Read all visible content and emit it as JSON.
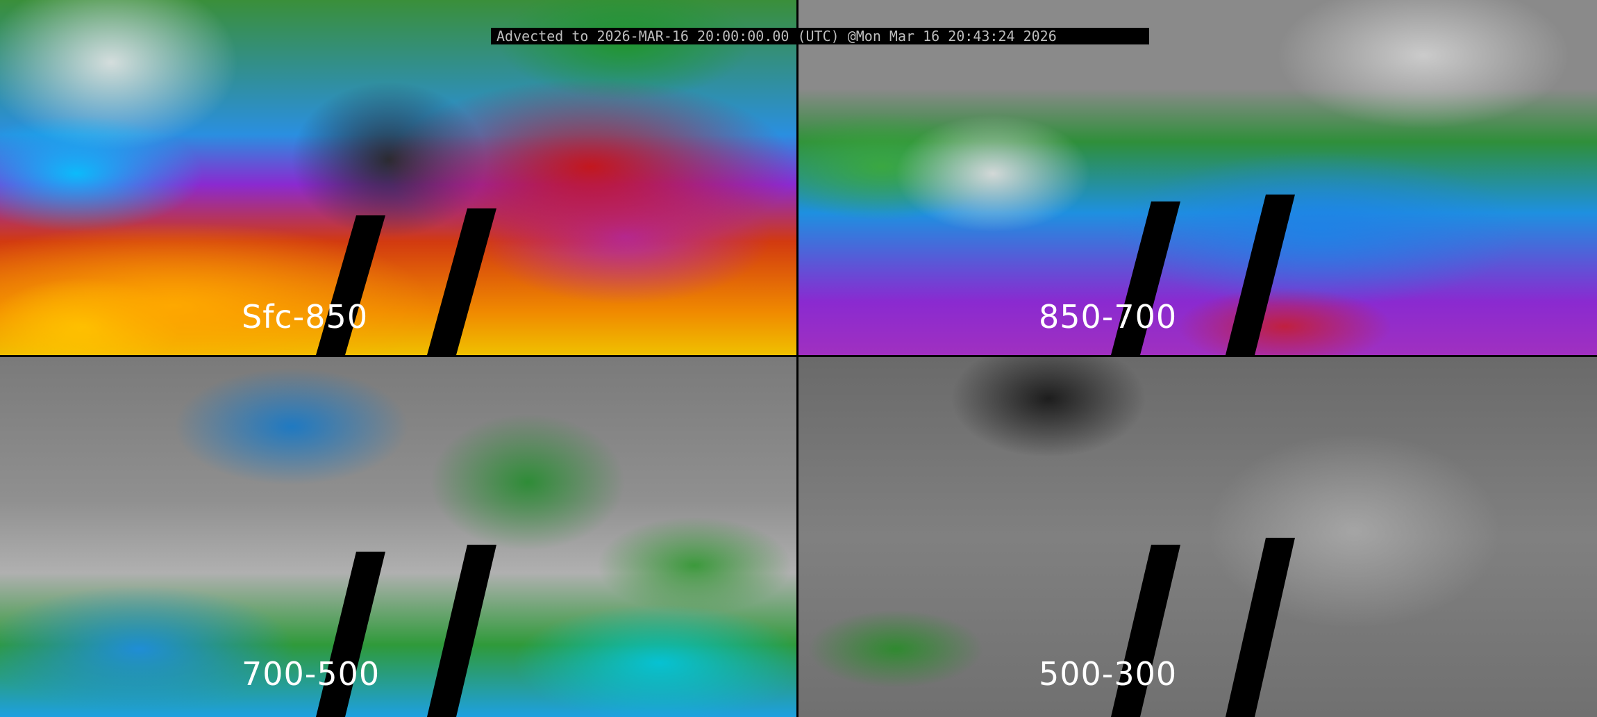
{
  "title": "Advected to 2026-MAR-16 20:00:00.00 (UTC) @Mon Mar 16 20:43:24 2026",
  "panels": [
    {
      "label": "Sfc-850"
    },
    {
      "label": "850-700"
    },
    {
      "label": "700-500"
    },
    {
      "label": "500-300"
    }
  ],
  "colors": {
    "divider": "#000000",
    "label_text": "#ffffff",
    "title_text": "#bdbdbd",
    "title_background": "#000000"
  }
}
